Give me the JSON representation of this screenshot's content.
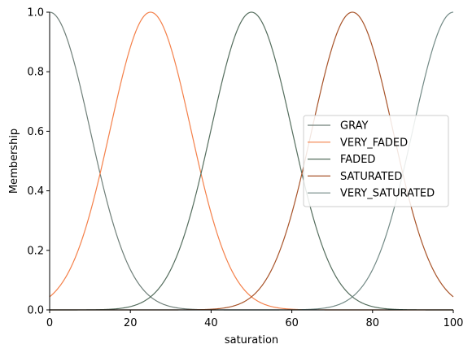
{
  "chart_data": {
    "type": "line",
    "title": "",
    "xlabel": "saturation",
    "ylabel": "Membership",
    "xlim": [
      0,
      100
    ],
    "ylim": [
      0,
      1.0
    ],
    "xticks": [
      0,
      20,
      40,
      60,
      80,
      100
    ],
    "xtick_labels": [
      "0",
      "20",
      "40",
      "60",
      "80",
      "100"
    ],
    "yticks": [
      0.0,
      0.2,
      0.4,
      0.6,
      0.8,
      1.0
    ],
    "ytick_labels": [
      "0.0",
      "0.2",
      "0.4",
      "0.6",
      "0.8",
      "1.0"
    ],
    "grid": false,
    "legend_position": "center-right",
    "series_shape": "gaussian",
    "series": [
      {
        "name": "GRAY",
        "mean": 0,
        "sigma": 10,
        "color": "#6f7f79"
      },
      {
        "name": "VERY_FADED",
        "mean": 25,
        "sigma": 10,
        "color": "#f4804a"
      },
      {
        "name": "FADED",
        "mean": 50,
        "sigma": 10,
        "color": "#556e5e"
      },
      {
        "name": "SATURATED",
        "mean": 75,
        "sigma": 10,
        "color": "#a8542a"
      },
      {
        "name": "VERY_SATURATED",
        "mean": 100,
        "sigma": 10,
        "color": "#738a86"
      }
    ]
  }
}
